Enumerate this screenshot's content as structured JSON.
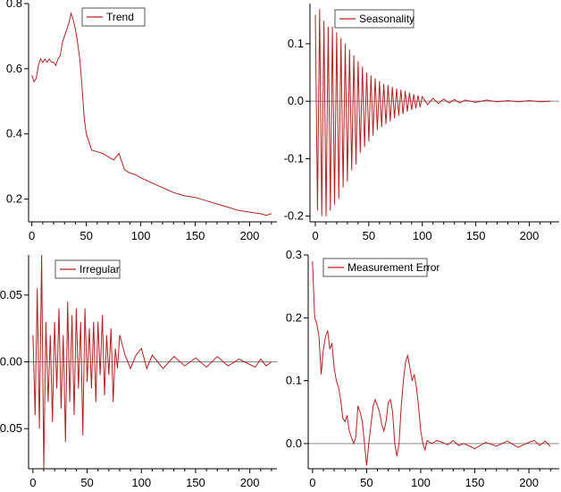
{
  "chart_data": [
    {
      "type": "line",
      "legend": "Trend",
      "legend_position": "top-left",
      "series_color": "#b22222",
      "xlim": [
        -3,
        225
      ],
      "ylim": [
        0.13,
        0.8
      ],
      "xticks": [
        0,
        50,
        100,
        150,
        200
      ],
      "yticks": [
        0.2,
        0.4,
        0.6,
        0.8
      ],
      "ytick_labels": [
        "0.2",
        "0.4",
        "0.6",
        "0.8"
      ],
      "x": [
        0,
        2,
        4,
        6,
        8,
        10,
        12,
        14,
        16,
        18,
        20,
        22,
        24,
        26,
        28,
        30,
        32,
        34,
        36,
        38,
        40,
        42,
        44,
        46,
        48,
        50,
        55,
        60,
        65,
        70,
        75,
        80,
        85,
        90,
        95,
        100,
        110,
        120,
        130,
        140,
        150,
        160,
        170,
        180,
        190,
        200,
        210,
        215,
        220
      ],
      "y": [
        0.58,
        0.56,
        0.57,
        0.61,
        0.63,
        0.62,
        0.63,
        0.62,
        0.63,
        0.62,
        0.62,
        0.61,
        0.63,
        0.64,
        0.68,
        0.7,
        0.72,
        0.74,
        0.77,
        0.75,
        0.72,
        0.68,
        0.63,
        0.55,
        0.45,
        0.4,
        0.35,
        0.345,
        0.34,
        0.33,
        0.32,
        0.34,
        0.29,
        0.28,
        0.275,
        0.265,
        0.25,
        0.235,
        0.22,
        0.21,
        0.205,
        0.195,
        0.185,
        0.175,
        0.165,
        0.16,
        0.155,
        0.15,
        0.155
      ]
    },
    {
      "type": "line",
      "legend": "Seasonality",
      "legend_position": "top-right",
      "series_color": "#b22222",
      "zero_line": true,
      "xlim": [
        -5,
        228
      ],
      "ylim": [
        -0.21,
        0.17
      ],
      "xticks": [
        0,
        50,
        100,
        150,
        200
      ],
      "yticks": [
        -0.2,
        -0.1,
        0.0,
        0.1
      ],
      "ytick_labels": [
        "-0.2",
        "-0.1",
        "0.0",
        "0.1"
      ],
      "x": [
        0,
        2,
        4,
        6,
        8,
        10,
        12,
        14,
        16,
        18,
        20,
        22,
        24,
        26,
        28,
        30,
        32,
        34,
        36,
        38,
        40,
        42,
        44,
        46,
        48,
        50,
        52,
        54,
        56,
        58,
        60,
        62,
        64,
        66,
        68,
        70,
        72,
        74,
        76,
        78,
        80,
        82,
        84,
        86,
        88,
        90,
        92,
        94,
        96,
        98,
        100,
        105,
        110,
        115,
        120,
        125,
        130,
        135,
        140,
        150,
        160,
        170,
        180,
        190,
        200,
        210,
        220
      ],
      "y": [
        0.15,
        -0.19,
        0.16,
        -0.2,
        0.14,
        -0.2,
        0.13,
        -0.19,
        0.13,
        -0.18,
        0.12,
        -0.17,
        0.11,
        -0.15,
        0.1,
        -0.14,
        0.09,
        -0.12,
        0.08,
        -0.11,
        0.07,
        -0.09,
        0.06,
        -0.08,
        0.05,
        -0.07,
        0.045,
        -0.06,
        0.04,
        -0.05,
        0.035,
        -0.045,
        0.03,
        -0.04,
        0.028,
        -0.035,
        0.025,
        -0.03,
        0.022,
        -0.025,
        0.02,
        -0.022,
        0.018,
        -0.018,
        0.015,
        -0.015,
        0.012,
        -0.012,
        0.01,
        -0.01,
        0.008,
        -0.006,
        0.005,
        -0.004,
        0.004,
        -0.003,
        0.003,
        -0.003,
        0.002,
        -0.002,
        0.002,
        -0.001,
        0.001,
        -0.001,
        0.001,
        -0.001,
        0.0
      ]
    },
    {
      "type": "line",
      "legend": "Irregular",
      "legend_position": "top-left",
      "series_color": "#b22222",
      "zero_line": true,
      "xlim": [
        -4,
        225
      ],
      "ylim": [
        -0.08,
        0.08
      ],
      "xticks": [
        0,
        50,
        100,
        150,
        200
      ],
      "yticks": [
        -0.05,
        0.0,
        0.05
      ],
      "ytick_labels": [
        "-0.05",
        "0.00",
        "0.05"
      ],
      "x": [
        0,
        2,
        4,
        6,
        8,
        10,
        12,
        14,
        16,
        18,
        20,
        22,
        24,
        26,
        28,
        30,
        32,
        34,
        36,
        38,
        40,
        42,
        44,
        46,
        48,
        50,
        52,
        54,
        56,
        58,
        60,
        62,
        64,
        66,
        68,
        70,
        72,
        74,
        76,
        78,
        80,
        85,
        90,
        95,
        100,
        105,
        110,
        115,
        120,
        130,
        140,
        150,
        160,
        170,
        180,
        190,
        200,
        205,
        210,
        215,
        220
      ],
      "y": [
        0.02,
        -0.04,
        0.055,
        -0.05,
        0.08,
        -0.08,
        0.03,
        -0.03,
        0.02,
        -0.045,
        0.03,
        -0.02,
        0.04,
        -0.035,
        0.02,
        -0.06,
        0.045,
        -0.03,
        0.035,
        -0.04,
        0.04,
        -0.02,
        0.03,
        -0.055,
        0.04,
        -0.015,
        0.025,
        -0.02,
        0.03,
        -0.03,
        0.03,
        -0.01,
        0.035,
        -0.025,
        0.02,
        -0.01,
        0.025,
        -0.03,
        0.01,
        -0.005,
        0.02,
        0.005,
        -0.005,
        0.005,
        0.01,
        -0.005,
        0.005,
        0.0,
        -0.005,
        0.004,
        -0.003,
        0.003,
        -0.004,
        0.004,
        -0.003,
        0.002,
        -0.002,
        -0.004,
        0.002,
        -0.003,
        0.0
      ]
    },
    {
      "type": "line",
      "legend": "Measurement Error",
      "legend_position": "top-left",
      "series_color": "#b22222",
      "zero_line": true,
      "xlim": [
        -4,
        228
      ],
      "ylim": [
        -0.04,
        0.3
      ],
      "xticks": [
        0,
        50,
        100,
        150,
        200
      ],
      "yticks": [
        0.0,
        0.1,
        0.2,
        0.3
      ],
      "ytick_labels": [
        "0.0",
        "0.1",
        "0.2",
        "0.3"
      ],
      "x": [
        0,
        2,
        4,
        6,
        8,
        10,
        12,
        14,
        16,
        18,
        20,
        22,
        24,
        26,
        28,
        30,
        32,
        34,
        36,
        38,
        40,
        42,
        44,
        46,
        48,
        50,
        52,
        54,
        56,
        58,
        60,
        62,
        64,
        66,
        68,
        70,
        72,
        74,
        76,
        78,
        80,
        82,
        84,
        86,
        88,
        90,
        92,
        94,
        96,
        98,
        100,
        102,
        104,
        106,
        110,
        115,
        120,
        125,
        130,
        135,
        140,
        150,
        160,
        170,
        180,
        190,
        200,
        205,
        210,
        215,
        220
      ],
      "y": [
        0.29,
        0.2,
        0.19,
        0.17,
        0.11,
        0.15,
        0.17,
        0.18,
        0.15,
        0.16,
        0.12,
        0.1,
        0.09,
        0.07,
        0.04,
        0.035,
        0.045,
        0.02,
        0.01,
        0.0,
        0.01,
        0.06,
        0.05,
        0.035,
        0.0,
        -0.035,
        0.0,
        0.03,
        0.06,
        0.07,
        0.06,
        0.05,
        0.03,
        0.02,
        0.035,
        0.065,
        0.07,
        0.05,
        0.0,
        -0.02,
        0.0,
        0.06,
        0.1,
        0.13,
        0.14,
        0.12,
        0.1,
        0.11,
        0.09,
        0.06,
        0.02,
        0.0,
        -0.01,
        0.005,
        0.0,
        0.005,
        0.002,
        -0.002,
        0.005,
        -0.003,
        0.0,
        -0.008,
        0.002,
        -0.004,
        0.004,
        -0.006,
        0.002,
        0.005,
        -0.003,
        0.004,
        -0.005
      ]
    }
  ]
}
